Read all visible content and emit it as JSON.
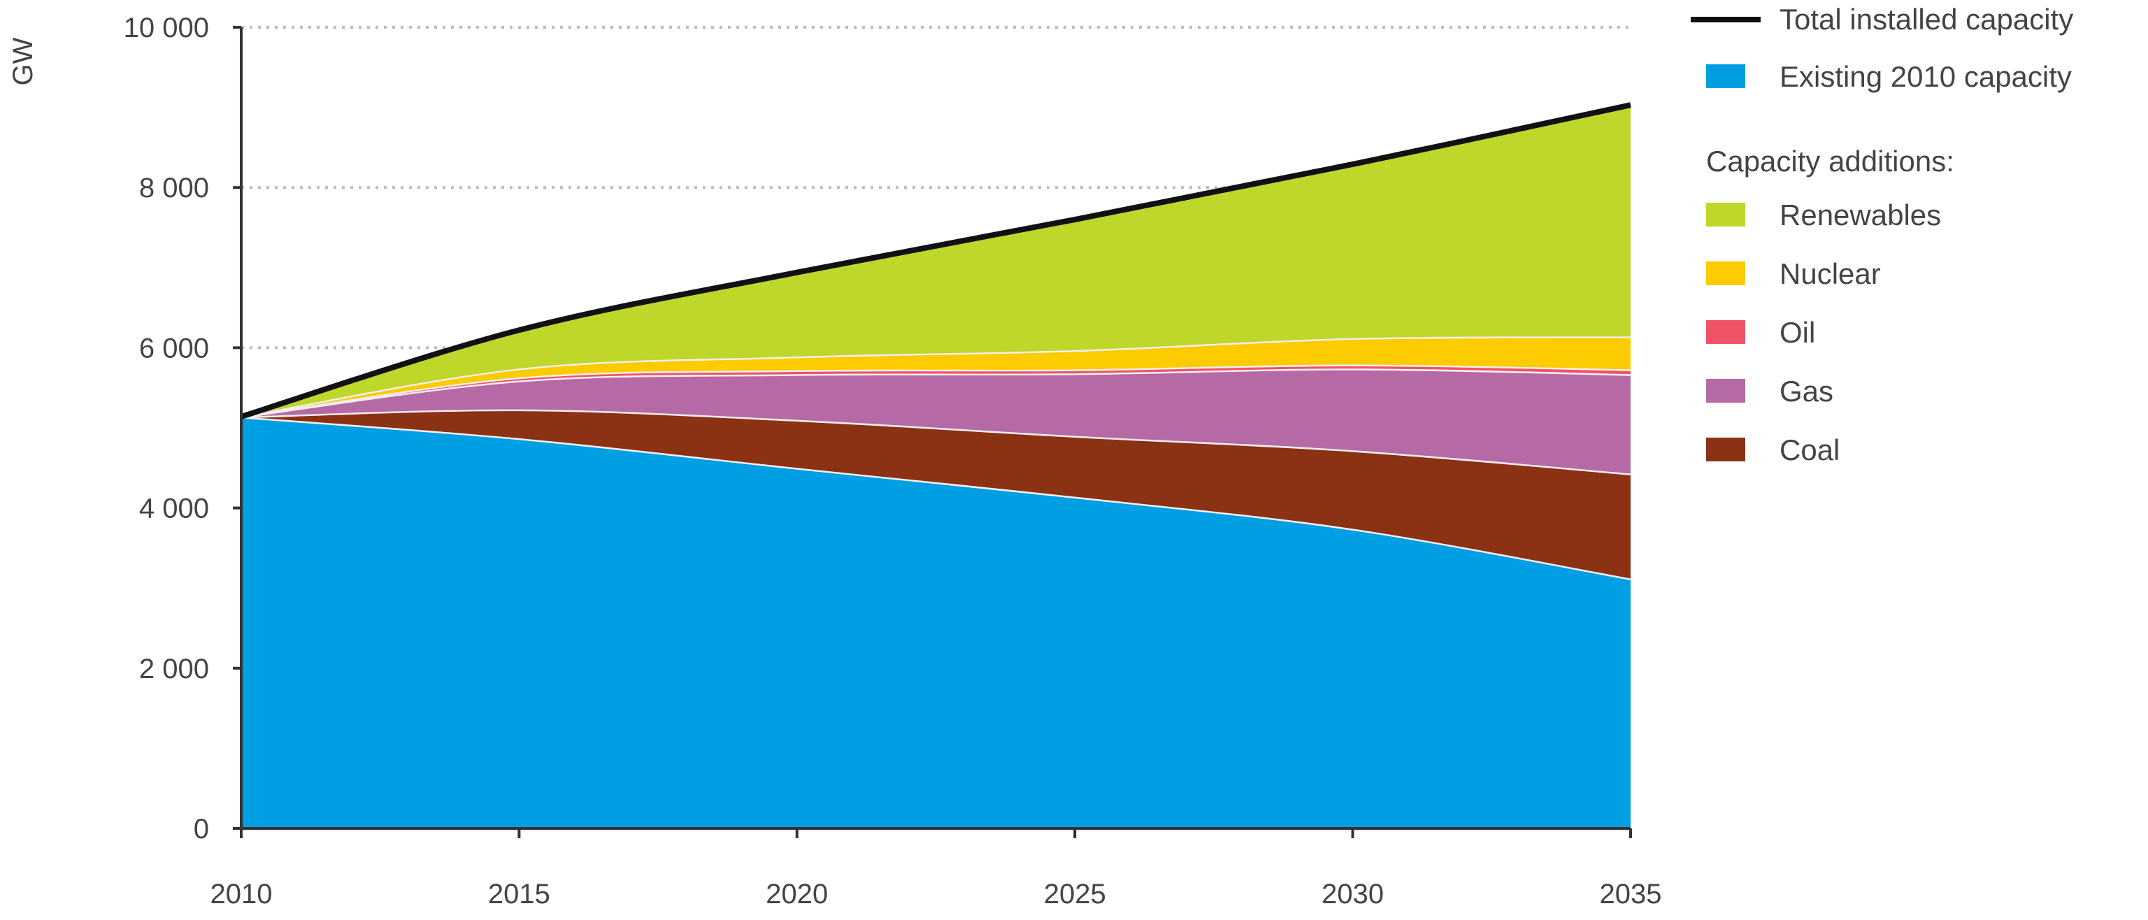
{
  "chart_data": {
    "type": "area",
    "stacked": true,
    "ylabel": "GW",
    "xlabel": "",
    "x": [
      2010,
      2015,
      2020,
      2025,
      2030,
      2035
    ],
    "xticks": [
      "2010",
      "2015",
      "2020",
      "2025",
      "2030",
      "2035"
    ],
    "ylim": [
      0,
      10000
    ],
    "yticks": [
      0,
      2000,
      4000,
      6000,
      8000,
      10000
    ],
    "ytick_labels": [
      "0",
      "2 000",
      "4 000",
      "6 000",
      "8 000",
      "10 000"
    ],
    "grid": "horizontal dotted",
    "legend_position": "right",
    "legend_subheading": "Capacity additions:",
    "series": [
      {
        "name": "Existing 2010 capacity",
        "color": "#009fe3",
        "values": [
          5140,
          4870,
          4500,
          4140,
          3740,
          3120
        ]
      },
      {
        "name": "Coal",
        "color": "#8b3214",
        "values": [
          0,
          360,
          600,
          760,
          980,
          1310
        ]
      },
      {
        "name": "Gas",
        "color": "#b56aa6",
        "values": [
          0,
          360,
          570,
          780,
          1020,
          1240
        ]
      },
      {
        "name": "Oil",
        "color": "#ef5466",
        "values": [
          0,
          40,
          50,
          50,
          50,
          60
        ]
      },
      {
        "name": "Nuclear",
        "color": "#fccb00",
        "values": [
          0,
          110,
          170,
          240,
          330,
          410
        ]
      },
      {
        "name": "Renewables",
        "color": "#bfd62a",
        "values": [
          0,
          480,
          1050,
          1630,
          2170,
          2890
        ]
      }
    ],
    "line": {
      "name": "Total installed capacity",
      "color": "#111111",
      "values": [
        5140,
        6220,
        6940,
        7600,
        8290,
        9030
      ]
    }
  }
}
